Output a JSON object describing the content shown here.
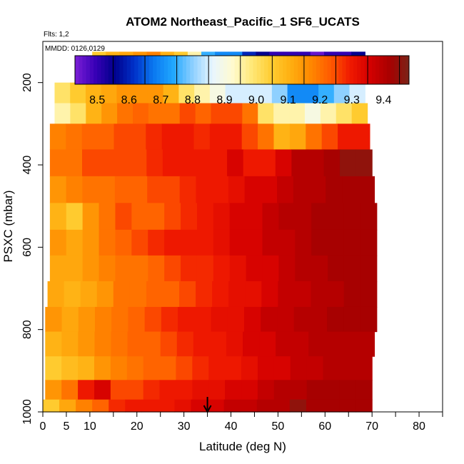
{
  "chart_data": {
    "type": "heatmap",
    "title": "ATOM2 Northeast_Pacific_1 SF6_UCATS",
    "flights_note": "Flts: 1,2",
    "dates_note": "MMDD: 0126,0129",
    "xlabel": "Latitude (deg N)",
    "ylabel": "PSXC (mbar)",
    "xlim": [
      0,
      85
    ],
    "ylim": [
      1000,
      100
    ],
    "y_reversed": true,
    "x_ticks": [
      0,
      5,
      10,
      20,
      30,
      40,
      50,
      60,
      70,
      80
    ],
    "x_minor_ticks": [
      15,
      25,
      35,
      45,
      55,
      65,
      75,
      85
    ],
    "y_ticks": [
      200,
      400,
      600,
      800,
      1000
    ],
    "colorbar": {
      "min": 8.43,
      "max": 9.48,
      "ticks": [
        8.5,
        8.6,
        8.7,
        8.8,
        8.9,
        9.0,
        9.1,
        9.2,
        9.3,
        9.4
      ],
      "tick_labels": [
        "8.5",
        "8.6",
        "8.7",
        "8.8",
        "8.9",
        "9.0",
        "9.1",
        "9.2",
        "9.3",
        "9.4"
      ],
      "colors": [
        "#7b1fd6",
        "#3a00b8",
        "#00008b",
        "#0030c8",
        "#0a78f0",
        "#20a8ff",
        "#8fd0ff",
        "#e8f6ff",
        "#fffbd0",
        "#ffe878",
        "#ffcc30",
        "#ffae10",
        "#ff8800",
        "#ff5a00",
        "#f01a00",
        "#d40000",
        "#a80000",
        "#7a2418"
      ]
    },
    "marker": {
      "label": "arrow",
      "latitude": 35
    },
    "levels": [
      {
        "p": 170,
        "lat0": 10.5,
        "lat1": 68.5,
        "v": [
          9.05,
          9.1,
          9.12,
          9.15,
          9.18,
          9.1,
          9.05,
          8.95,
          8.75,
          8.7,
          8.7,
          8.6,
          8.55,
          8.5,
          8.5,
          8.5,
          8.45,
          8.5,
          8.5,
          8.55
        ]
      },
      {
        "p": 230,
        "lat0": 2.5,
        "lat1": 68.5,
        "v": [
          9.0,
          9.05,
          9.1,
          9.12,
          9.15,
          9.15,
          9.15,
          9.1,
          9.0,
          8.95,
          8.9,
          8.85,
          8.85,
          8.85,
          8.8,
          8.7,
          8.7,
          8.75,
          8.8,
          8.85
        ]
      },
      {
        "p": 270,
        "lat0": 2.5,
        "lat1": 69,
        "v": [
          8.95,
          9.0,
          9.1,
          9.15,
          9.2,
          9.22,
          9.2,
          9.2,
          9.25,
          9.22,
          9.25,
          9.25,
          9.2,
          9.0,
          8.95,
          8.95,
          8.9,
          8.95,
          9.0,
          9.05
        ]
      },
      {
        "p": 330,
        "lat0": 1.5,
        "lat1": 69.5,
        "v": [
          9.18,
          9.2,
          9.22,
          9.22,
          9.25,
          9.25,
          9.28,
          9.3,
          9.3,
          9.28,
          9.3,
          9.3,
          9.25,
          9.2,
          9.1,
          9.12,
          9.2,
          9.25,
          9.3,
          9.3
        ]
      },
      {
        "p": 395,
        "lat0": 1.5,
        "lat1": 70,
        "v": [
          9.2,
          9.2,
          9.25,
          9.25,
          9.25,
          9.25,
          9.28,
          9.3,
          9.3,
          9.3,
          9.3,
          9.35,
          9.3,
          9.3,
          9.35,
          9.4,
          9.4,
          9.42,
          9.45,
          9.45
        ]
      },
      {
        "p": 460,
        "lat0": 1.5,
        "lat1": 70.5,
        "v": [
          9.15,
          9.18,
          9.2,
          9.2,
          9.22,
          9.22,
          9.25,
          9.25,
          9.28,
          9.3,
          9.3,
          9.32,
          9.35,
          9.35,
          9.38,
          9.4,
          9.4,
          9.42,
          9.42,
          9.42
        ]
      },
      {
        "p": 525,
        "lat0": 1.5,
        "lat1": 71,
        "v": [
          9.1,
          9.05,
          9.15,
          9.2,
          9.25,
          9.22,
          9.22,
          9.25,
          9.28,
          9.3,
          9.32,
          9.35,
          9.35,
          9.38,
          9.4,
          9.4,
          9.42,
          9.42,
          9.42,
          9.42
        ]
      },
      {
        "p": 590,
        "lat0": 1.5,
        "lat1": 71,
        "v": [
          9.15,
          9.12,
          9.15,
          9.2,
          9.22,
          9.25,
          9.28,
          9.3,
          9.3,
          9.3,
          9.32,
          9.35,
          9.35,
          9.38,
          9.38,
          9.4,
          9.42,
          9.42,
          9.42,
          9.42
        ]
      },
      {
        "p": 650,
        "lat0": 1.5,
        "lat1": 71,
        "v": [
          9.12,
          9.12,
          9.15,
          9.18,
          9.2,
          9.2,
          9.22,
          9.25,
          9.28,
          9.28,
          9.3,
          9.32,
          9.35,
          9.35,
          9.38,
          9.4,
          9.4,
          9.42,
          9.42,
          9.42
        ]
      },
      {
        "p": 715,
        "lat0": 1,
        "lat1": 71,
        "v": [
          9.12,
          9.1,
          9.12,
          9.15,
          9.2,
          9.2,
          9.22,
          9.22,
          9.25,
          9.28,
          9.3,
          9.32,
          9.32,
          9.35,
          9.38,
          9.38,
          9.4,
          9.4,
          9.42,
          9.42
        ]
      },
      {
        "p": 775,
        "lat0": 0.5,
        "lat1": 71,
        "v": [
          9.15,
          9.12,
          9.15,
          9.18,
          9.2,
          9.22,
          9.25,
          9.28,
          9.3,
          9.3,
          9.32,
          9.32,
          9.35,
          9.38,
          9.38,
          9.4,
          9.4,
          9.42,
          9.42,
          9.42
        ]
      },
      {
        "p": 835,
        "lat0": 0.5,
        "lat1": 70.5,
        "v": [
          9.1,
          9.12,
          9.15,
          9.18,
          9.2,
          9.22,
          9.22,
          9.25,
          9.28,
          9.3,
          9.3,
          9.32,
          9.35,
          9.35,
          9.38,
          9.38,
          9.4,
          9.4,
          9.4,
          9.4
        ]
      },
      {
        "p": 895,
        "lat0": 0.5,
        "lat1": 70,
        "v": [
          9.05,
          9.08,
          9.1,
          9.15,
          9.18,
          9.2,
          9.22,
          9.22,
          9.25,
          9.28,
          9.3,
          9.3,
          9.32,
          9.35,
          9.35,
          9.38,
          9.38,
          9.4,
          9.4,
          9.4
        ]
      },
      {
        "p": 950,
        "lat0": 0.5,
        "lat1": 70,
        "v": [
          9.15,
          9.2,
          9.3,
          9.35,
          9.25,
          9.25,
          9.28,
          9.3,
          9.3,
          9.32,
          9.32,
          9.35,
          9.35,
          9.38,
          9.4,
          9.4,
          9.42,
          9.42,
          9.42,
          9.42
        ]
      },
      {
        "p": 990,
        "lat0": 0,
        "lat1": 70,
        "v": [
          9.05,
          9.12,
          9.18,
          9.22,
          9.28,
          9.3,
          9.3,
          9.3,
          9.32,
          9.35,
          9.35,
          9.38,
          9.38,
          9.4,
          9.4,
          9.45,
          9.42,
          9.42,
          9.42,
          9.42
        ]
      }
    ]
  }
}
